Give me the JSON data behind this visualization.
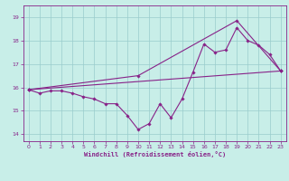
{
  "xlabel": "Windchill (Refroidissement éolien,°C)",
  "bg_color": "#c8eee8",
  "line_color": "#882288",
  "grid_color": "#99cccc",
  "xlim": [
    -0.5,
    23.5
  ],
  "ylim": [
    13.7,
    19.5
  ],
  "xticks": [
    0,
    1,
    2,
    3,
    4,
    5,
    6,
    7,
    8,
    9,
    10,
    11,
    12,
    13,
    14,
    15,
    16,
    17,
    18,
    19,
    20,
    21,
    22,
    23
  ],
  "yticks": [
    14,
    15,
    16,
    17,
    18,
    19
  ],
  "curve1_x": [
    0,
    1,
    2,
    3,
    4,
    5,
    6,
    7,
    8,
    9,
    10,
    11,
    12,
    13,
    14,
    15,
    16,
    17,
    18,
    19,
    20,
    21,
    22,
    23
  ],
  "curve1_y": [
    15.9,
    15.75,
    15.85,
    15.85,
    15.75,
    15.6,
    15.5,
    15.3,
    15.3,
    14.8,
    14.2,
    14.45,
    15.3,
    14.7,
    15.5,
    16.65,
    17.85,
    17.5,
    17.6,
    18.55,
    18.0,
    17.8,
    17.4,
    16.7
  ],
  "curve2_x": [
    0,
    23
  ],
  "curve2_y": [
    15.9,
    16.7
  ],
  "curve3_x": [
    0,
    10,
    19,
    23
  ],
  "curve3_y": [
    15.9,
    16.5,
    18.85,
    16.7
  ]
}
